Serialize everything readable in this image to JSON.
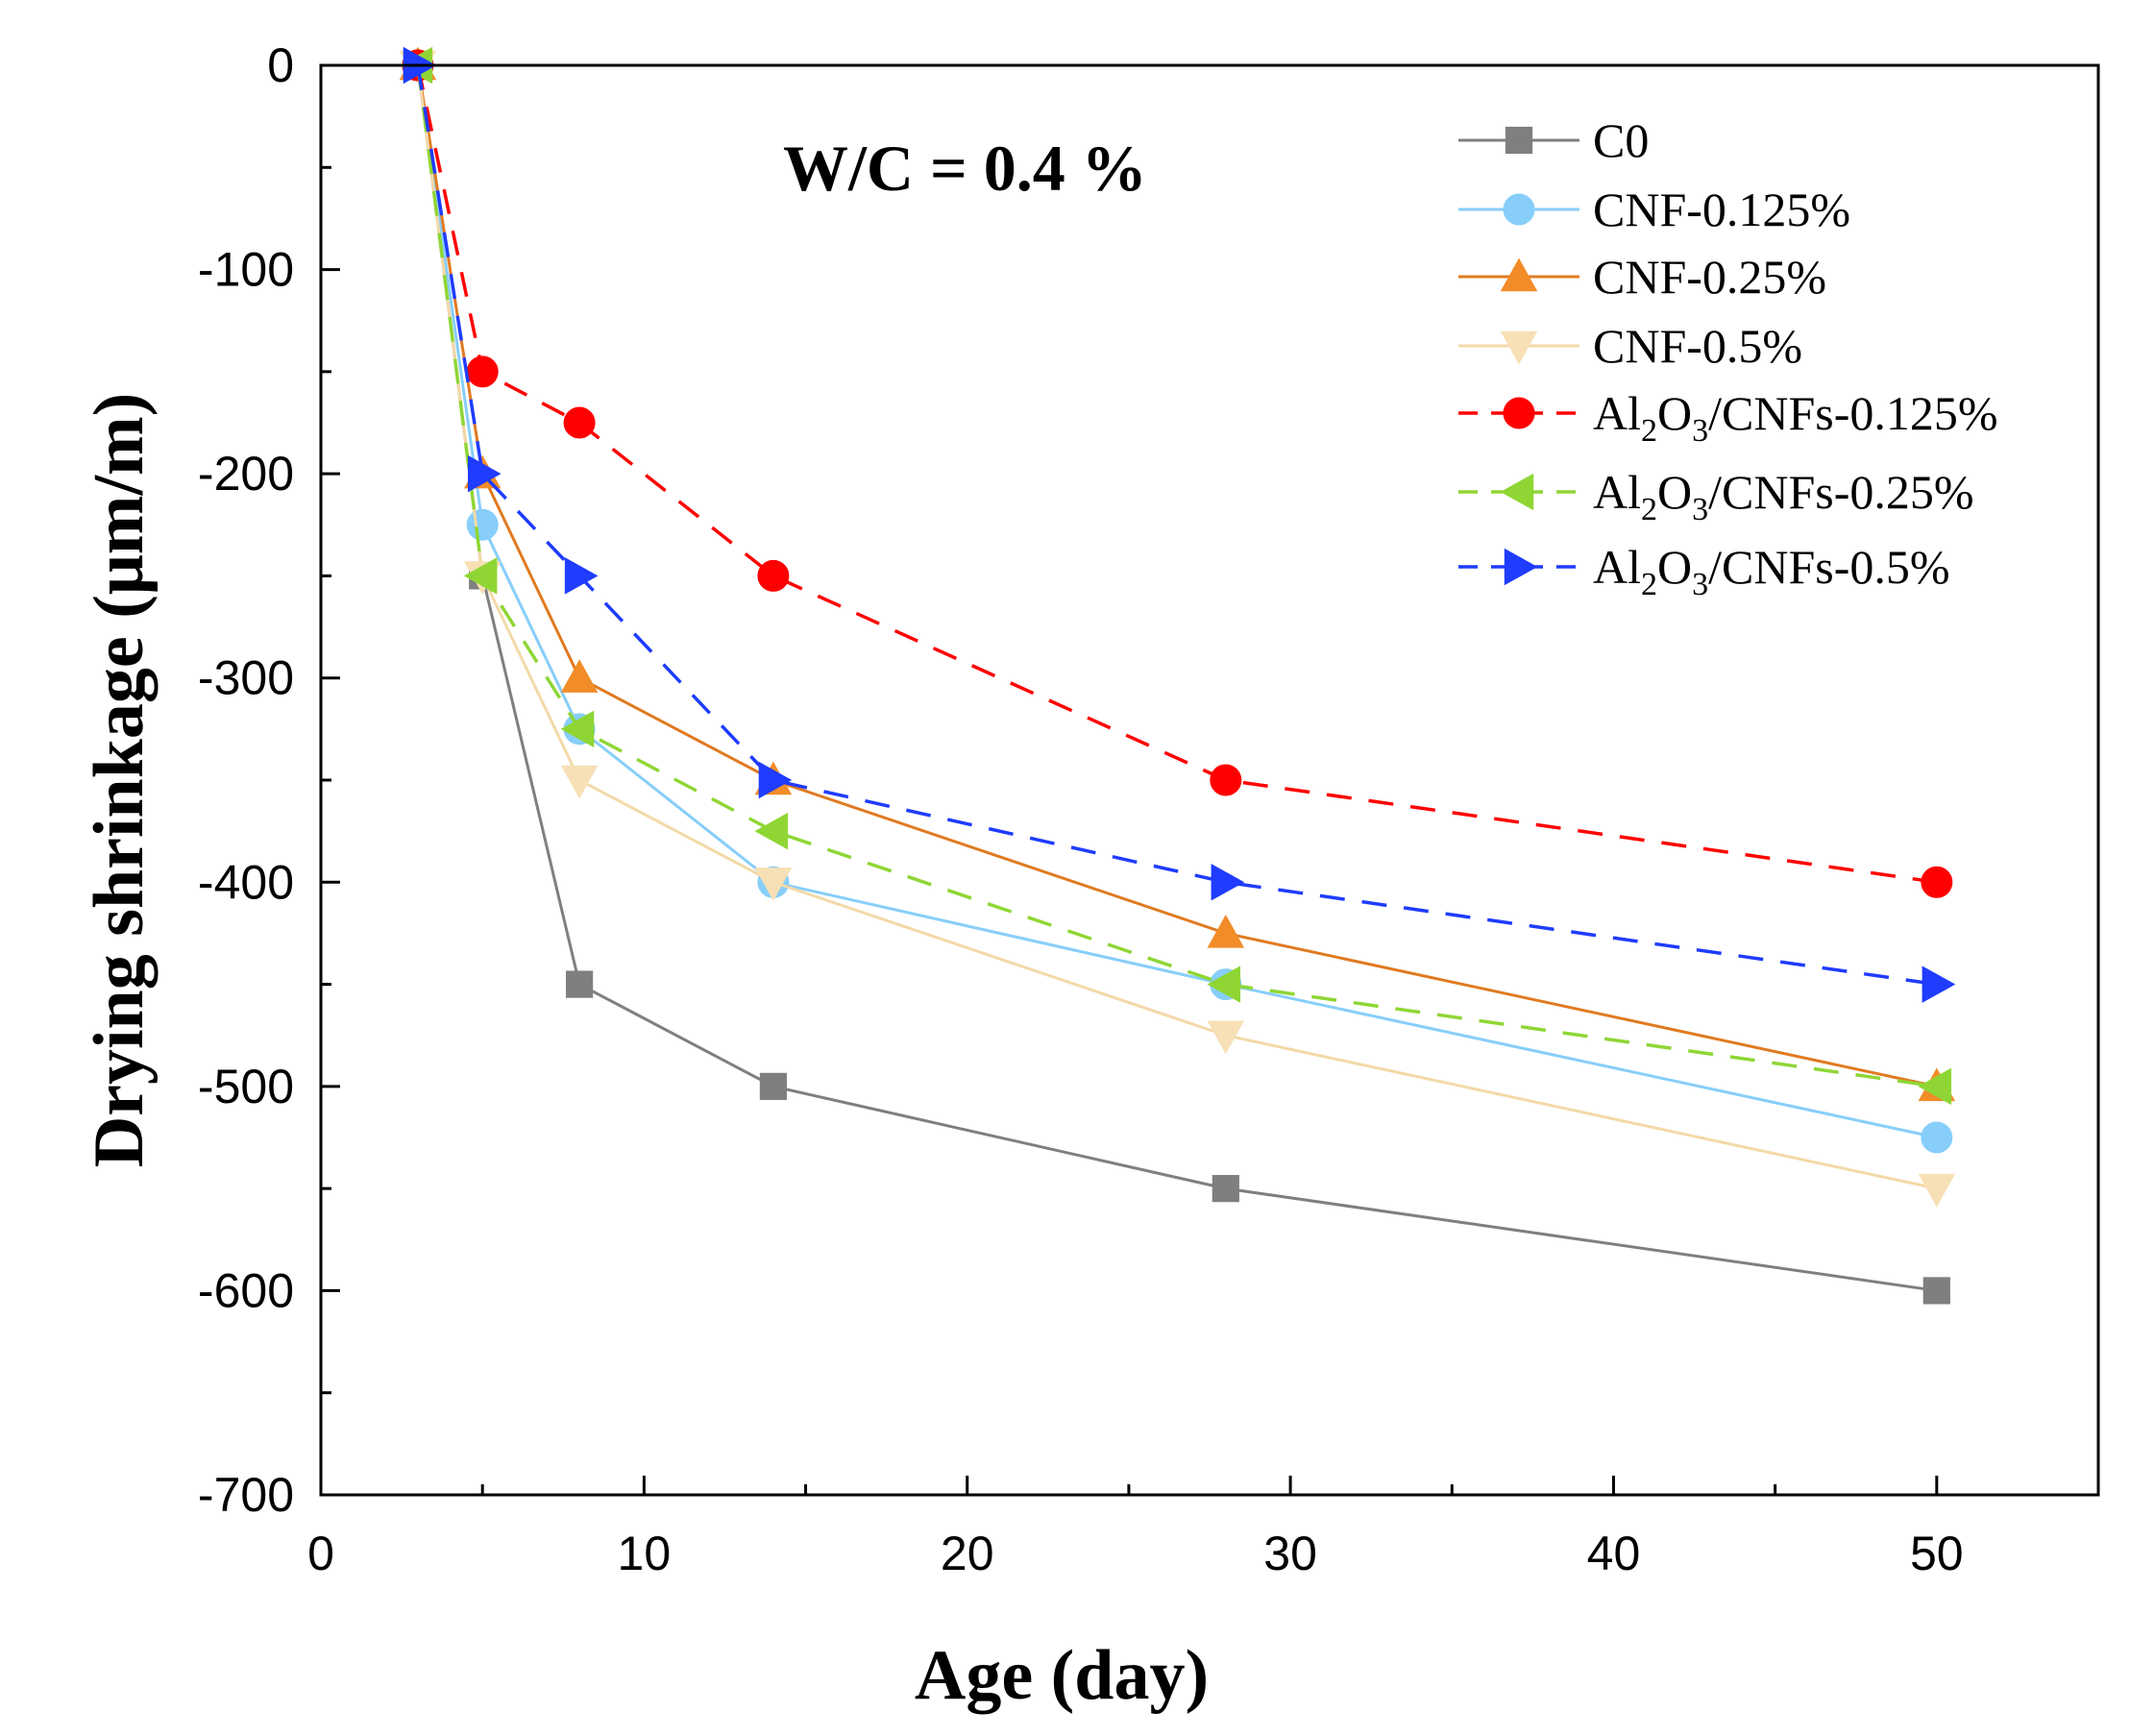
{
  "chart_data": {
    "type": "line",
    "title": "",
    "xlabel": "Age (day)",
    "ylabel": "Drying shrinkage (μm/m)",
    "annotation": "W/C = 0.4 %",
    "xlim": [
      0,
      55
    ],
    "ylim": [
      -700,
      0
    ],
    "xticks": [
      0,
      10,
      20,
      30,
      40,
      50
    ],
    "yticks": [
      0,
      -100,
      -200,
      -300,
      -400,
      -500,
      -600,
      -700
    ],
    "xtick_labels": [
      "0",
      "10",
      "20",
      "30",
      "40",
      "50"
    ],
    "ytick_labels": [
      "0",
      "-100",
      "-200",
      "-300",
      "-400",
      "-500",
      "-600",
      "-700"
    ],
    "x": [
      3,
      5,
      8,
      14,
      28,
      50
    ],
    "legend_position": "top-right",
    "series": [
      {
        "name": "C0",
        "legend_parts": [
          {
            "t": "C0"
          }
        ],
        "color": "#7f7f7f",
        "line_color": "#7f7f7f",
        "marker": "square",
        "dashed": false,
        "values": [
          0,
          -250,
          -450,
          -500,
          -550,
          -600
        ]
      },
      {
        "name": "CNF-0.125%",
        "legend_parts": [
          {
            "t": "CNF-0.125%"
          }
        ],
        "color": "#87cefa",
        "line_color": "#87cefa",
        "marker": "circle",
        "dashed": false,
        "values": [
          0,
          -225,
          -325,
          -400,
          -450,
          -525
        ]
      },
      {
        "name": "CNF-0.25%",
        "legend_parts": [
          {
            "t": "CNF-0.25%"
          }
        ],
        "color": "#f28c28",
        "line_color": "#e07a20",
        "marker": "triangle-up",
        "dashed": false,
        "values": [
          0,
          -200,
          -300,
          -350,
          -425,
          -500
        ]
      },
      {
        "name": "CNF-0.5%",
        "legend_parts": [
          {
            "t": "CNF-0.5%"
          }
        ],
        "color": "#f7e0b5",
        "line_color": "#f3d9a8",
        "marker": "triangle-down",
        "dashed": false,
        "values": [
          0,
          -250,
          -350,
          -400,
          -475,
          -550
        ]
      },
      {
        "name": "Al2O3/CNFs-0.125%",
        "legend_parts": [
          {
            "t": "Al"
          },
          {
            "t": "2",
            "sub": true
          },
          {
            "t": "O"
          },
          {
            "t": "3",
            "sub": true
          },
          {
            "t": "/CNFs-0.125%"
          }
        ],
        "color": "#ff0000",
        "line_color": "#ff0000",
        "marker": "circle",
        "dashed": true,
        "values": [
          0,
          -150,
          -175,
          -250,
          -350,
          -400
        ]
      },
      {
        "name": "Al2O3/CNFs-0.25%",
        "legend_parts": [
          {
            "t": "Al"
          },
          {
            "t": "2",
            "sub": true
          },
          {
            "t": "O"
          },
          {
            "t": "3",
            "sub": true
          },
          {
            "t": "/CNFs-0.25%"
          }
        ],
        "color": "#8fd635",
        "line_color": "#8fd635",
        "marker": "triangle-left",
        "dashed": true,
        "values": [
          0,
          -250,
          -325,
          -375,
          -450,
          -500
        ]
      },
      {
        "name": "Al2O3/CNFs-0.5%",
        "legend_parts": [
          {
            "t": "Al"
          },
          {
            "t": "2",
            "sub": true
          },
          {
            "t": "O"
          },
          {
            "t": "3",
            "sub": true
          },
          {
            "t": "/CNFs-0.5%"
          }
        ],
        "color": "#1f3cff",
        "line_color": "#1f3cff",
        "marker": "triangle-right",
        "dashed": true,
        "values": [
          0,
          -200,
          -250,
          -350,
          -400,
          -450
        ]
      }
    ]
  }
}
